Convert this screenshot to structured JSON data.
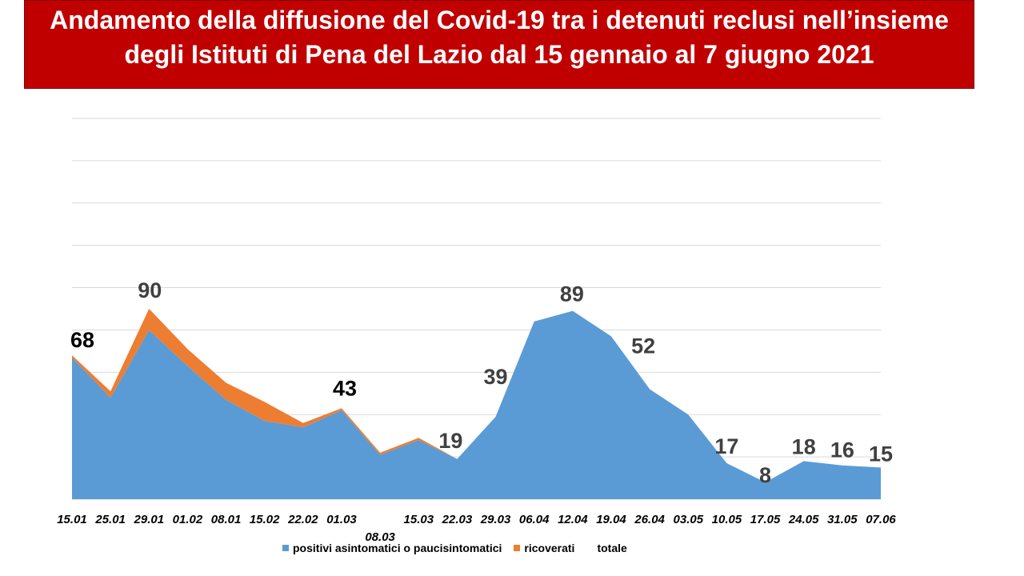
{
  "title_lines": [
    "Andamento della diffusione del Covid-19 tra i detenuti reclusi nell’insieme",
    "degli Istituti di Pena del Lazio dal 15 gennaio al 7 giugno 2021"
  ],
  "colors": {
    "title_background": "#C00000",
    "title_text": "#FFFFFF"
  },
  "chart_data": {
    "type": "area",
    "stacked": true,
    "title": "",
    "xlabel": "",
    "ylabel": "",
    "categories": [
      "15.01",
      "25.01",
      "29.01",
      "01.02",
      "08.01",
      "15.02",
      "22.02",
      "01.03",
      "08.03",
      "15.03",
      "22.03",
      "29.03",
      "06.04",
      "12.04",
      "19.04",
      "26.04",
      "03.05",
      "10.05",
      "17.05",
      "24.05",
      "31.05",
      "07.06"
    ],
    "series": [
      {
        "name": "positivi asintomatici o paucisintomatici",
        "color": "#5B9BD5",
        "values": [
          67,
          48,
          80,
          63,
          47,
          37,
          34,
          42,
          21,
          28,
          19,
          39,
          84,
          89,
          77,
          52,
          40,
          17,
          8,
          18,
          16,
          15
        ]
      },
      {
        "name": "ricoverati",
        "color": "#ED7D31",
        "values": [
          1,
          3,
          10,
          8,
          8,
          9,
          2,
          1,
          1,
          1,
          0,
          0,
          0,
          0,
          0,
          0,
          0,
          0,
          0,
          0,
          0,
          0
        ]
      },
      {
        "name": "totale",
        "color": "none",
        "values": [
          68,
          51,
          90,
          71,
          55,
          46,
          36,
          43,
          22,
          29,
          19,
          39,
          84,
          89,
          77,
          52,
          40,
          17,
          8,
          18,
          16,
          15
        ]
      }
    ],
    "data_labels": [
      {
        "category": "15.01",
        "text": "68",
        "color": "#000000"
      },
      {
        "category": "29.01",
        "text": "90",
        "color": "#404040"
      },
      {
        "category": "01.03",
        "text": "43",
        "color": "#000000"
      },
      {
        "category": "22.03",
        "text": "19",
        "color": "#404040"
      },
      {
        "category": "29.03",
        "text": "39",
        "color": "#404040"
      },
      {
        "category": "12.04",
        "text": "89",
        "color": "#404040"
      },
      {
        "category": "26.04",
        "text": "52",
        "color": "#404040"
      },
      {
        "category": "10.05",
        "text": "17",
        "color": "#404040"
      },
      {
        "category": "17.05",
        "text": "8",
        "color": "#404040"
      },
      {
        "category": "24.05",
        "text": "18",
        "color": "#404040"
      },
      {
        "category": "31.05",
        "text": "16",
        "color": "#404040"
      },
      {
        "category": "07.06",
        "text": "15",
        "color": "#404040"
      }
    ],
    "ylim": [
      0,
      180
    ],
    "grid": true,
    "grid_step": 20,
    "gridline_color": "#D9D9D9",
    "y_tick_labels_shown": false,
    "legend": "bottom"
  }
}
